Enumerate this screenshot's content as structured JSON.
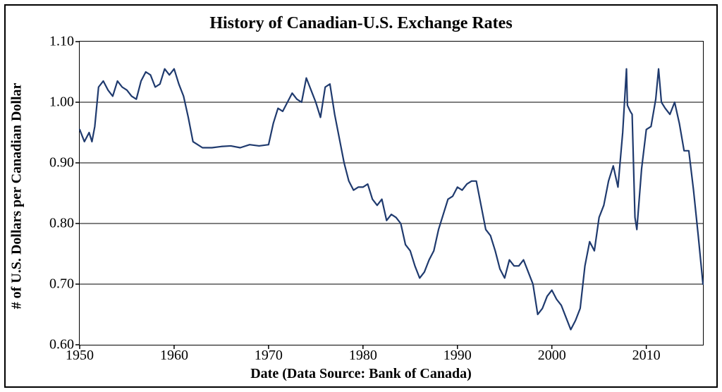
{
  "chart": {
    "type": "line",
    "title": "History of Canadian-U.S. Exchange Rates",
    "xlabel": "Date (Data Source: Bank of Canada)",
    "ylabel": "# of U.S. Dollars per Canadian Dollar",
    "title_fontsize": 24,
    "label_fontsize": 20,
    "tick_fontsize": 20,
    "font_family": "Times New Roman",
    "font_weight_title": "bold",
    "font_weight_labels": "bold",
    "line_color": "#1f3a6e",
    "line_width": 2.2,
    "background_color": "#ffffff",
    "grid_color": "#000000",
    "grid_width": 1,
    "border_color": "#000000",
    "outer_frame_color": "#000000",
    "xlim": [
      1950,
      2016
    ],
    "ylim": [
      0.6,
      1.1
    ],
    "xtick_step": 10,
    "ytick_step": 0.1,
    "ytick_decimals": 2,
    "xticks": [
      1950,
      1960,
      1970,
      1980,
      1990,
      2000,
      2010
    ],
    "yticks": [
      0.6,
      0.7,
      0.8,
      0.9,
      1.0,
      1.1
    ],
    "series": {
      "x": [
        1950.0,
        1950.5,
        1951.0,
        1951.3,
        1951.6,
        1952.0,
        1952.5,
        1953.0,
        1953.5,
        1954.0,
        1954.5,
        1955.0,
        1955.5,
        1956.0,
        1956.5,
        1957.0,
        1957.5,
        1958.0,
        1958.5,
        1959.0,
        1959.5,
        1960.0,
        1960.5,
        1961.0,
        1961.5,
        1962.0,
        1962.5,
        1963.0,
        1964.0,
        1965.0,
        1966.0,
        1967.0,
        1968.0,
        1969.0,
        1970.0,
        1970.5,
        1971.0,
        1971.5,
        1972.0,
        1972.5,
        1973.0,
        1973.5,
        1974.0,
        1974.5,
        1975.0,
        1975.5,
        1976.0,
        1976.5,
        1977.0,
        1977.5,
        1978.0,
        1978.5,
        1979.0,
        1979.5,
        1980.0,
        1980.5,
        1981.0,
        1981.5,
        1982.0,
        1982.5,
        1983.0,
        1983.5,
        1984.0,
        1984.5,
        1985.0,
        1985.5,
        1986.0,
        1986.5,
        1987.0,
        1987.5,
        1988.0,
        1988.5,
        1989.0,
        1989.5,
        1990.0,
        1990.5,
        1991.0,
        1991.5,
        1992.0,
        1992.5,
        1993.0,
        1993.5,
        1994.0,
        1994.5,
        1995.0,
        1995.5,
        1996.0,
        1996.5,
        1997.0,
        1997.5,
        1998.0,
        1998.5,
        1999.0,
        1999.5,
        2000.0,
        2000.5,
        2001.0,
        2001.5,
        2002.0,
        2002.5,
        2003.0,
        2003.5,
        2004.0,
        2004.5,
        2005.0,
        2005.5,
        2006.0,
        2006.5,
        2007.0,
        2007.5,
        2007.9,
        2008.0,
        2008.3,
        2008.5,
        2008.8,
        2009.0,
        2009.5,
        2010.0,
        2010.5,
        2011.0,
        2011.3,
        2011.6,
        2012.0,
        2012.5,
        2013.0,
        2013.5,
        2014.0,
        2014.5,
        2015.0,
        2015.5,
        2016.0
      ],
      "y": [
        0.955,
        0.935,
        0.95,
        0.935,
        0.96,
        1.025,
        1.035,
        1.02,
        1.01,
        1.035,
        1.025,
        1.02,
        1.01,
        1.005,
        1.035,
        1.05,
        1.045,
        1.025,
        1.03,
        1.055,
        1.045,
        1.055,
        1.03,
        1.01,
        0.975,
        0.935,
        0.93,
        0.925,
        0.925,
        0.927,
        0.928,
        0.925,
        0.93,
        0.928,
        0.93,
        0.965,
        0.99,
        0.985,
        1.0,
        1.015,
        1.005,
        1.0,
        1.04,
        1.02,
        1.0,
        0.975,
        1.025,
        1.03,
        0.98,
        0.94,
        0.9,
        0.87,
        0.855,
        0.86,
        0.86,
        0.865,
        0.84,
        0.83,
        0.84,
        0.805,
        0.815,
        0.81,
        0.8,
        0.765,
        0.755,
        0.73,
        0.71,
        0.72,
        0.74,
        0.755,
        0.79,
        0.815,
        0.84,
        0.845,
        0.86,
        0.855,
        0.865,
        0.87,
        0.87,
        0.83,
        0.79,
        0.78,
        0.755,
        0.725,
        0.71,
        0.74,
        0.73,
        0.73,
        0.74,
        0.72,
        0.7,
        0.65,
        0.66,
        0.68,
        0.69,
        0.675,
        0.665,
        0.645,
        0.625,
        0.64,
        0.66,
        0.73,
        0.77,
        0.755,
        0.81,
        0.83,
        0.87,
        0.895,
        0.86,
        0.95,
        1.055,
        0.995,
        0.985,
        0.98,
        0.81,
        0.79,
        0.89,
        0.955,
        0.96,
        1.005,
        1.055,
        1.0,
        0.99,
        0.98,
        1.0,
        0.965,
        0.92,
        0.92,
        0.855,
        0.78,
        0.7
      ]
    }
  }
}
